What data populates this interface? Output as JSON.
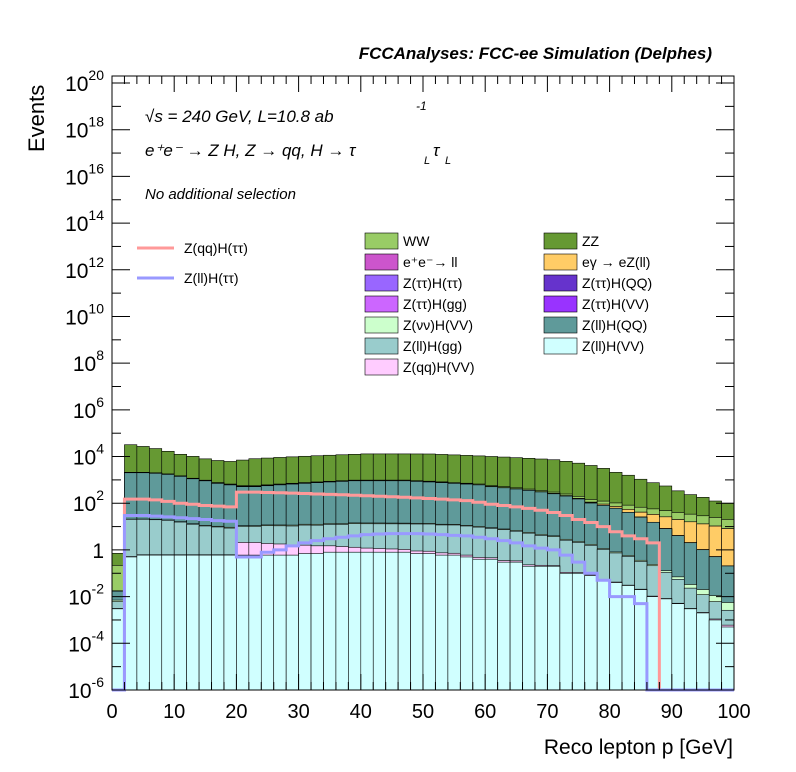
{
  "chart_data": {
    "type": "bar",
    "title": "FCCAnalyses: FCC-ee Simulation (Delphes)",
    "xlabel": "Reco lepton p [GeV]",
    "ylabel": "Events",
    "xlim": [
      0,
      100
    ],
    "ylim": [
      1e-06,
      2e+20
    ],
    "y_scale": "log",
    "x_ticks": [
      "0",
      "10",
      "20",
      "30",
      "40",
      "50",
      "60",
      "70",
      "80",
      "90",
      "100"
    ],
    "y_ticks": [
      {
        "base": "10",
        "exp": "-6",
        "value": 1e-06
      },
      {
        "base": "10",
        "exp": "-4",
        "value": 0.0001
      },
      {
        "base": "10",
        "exp": "-2",
        "value": 0.01
      },
      {
        "base": "1",
        "exp": "",
        "value": 1
      },
      {
        "base": "10",
        "exp": "2",
        "value": 100.0
      },
      {
        "base": "10",
        "exp": "4",
        "value": 10000.0
      },
      {
        "base": "10",
        "exp": "6",
        "value": 1000000.0
      },
      {
        "base": "10",
        "exp": "8",
        "value": 100000000.0
      },
      {
        "base": "10",
        "exp": "10",
        "value": 10000000000.0
      },
      {
        "base": "10",
        "exp": "12",
        "value": 1000000000000.0
      },
      {
        "base": "10",
        "exp": "14",
        "value": 100000000000000.0
      },
      {
        "base": "10",
        "exp": "16",
        "value": 1e+16
      },
      {
        "base": "10",
        "exp": "18",
        "value": 1e+18
      },
      {
        "base": "10",
        "exp": "20",
        "value": 1e+20
      }
    ],
    "annotations": {
      "energy": "√s = 240 GeV, L=10.8 ab",
      "energy_sup": "-1",
      "process": "e⁺e⁻ → Z H, Z → qq, H → τ",
      "process_sub": "L",
      "process_tau2": "τ",
      "selection": "No additional selection"
    },
    "bin_edges": [
      0,
      2,
      4,
      6,
      8,
      10,
      12,
      14,
      16,
      18,
      20,
      22,
      24,
      26,
      28,
      30,
      32,
      34,
      36,
      38,
      40,
      42,
      44,
      46,
      48,
      50,
      52,
      54,
      56,
      58,
      60,
      62,
      64,
      66,
      68,
      70,
      72,
      74,
      76,
      78,
      80,
      82,
      84,
      86,
      88,
      90,
      92,
      94,
      96,
      98,
      100
    ],
    "stacked_series": [
      {
        "name": "Z(ll)H(VV)",
        "color": "#d0ffff",
        "values": [
          0.003,
          0.5,
          0.6,
          0.6,
          0.6,
          0.6,
          0.6,
          0.6,
          0.6,
          0.6,
          0.6,
          0.6,
          0.6,
          0.6,
          0.6,
          0.7,
          0.7,
          0.8,
          0.8,
          0.8,
          0.8,
          0.8,
          0.8,
          0.8,
          0.7,
          0.7,
          0.6,
          0.6,
          0.5,
          0.4,
          0.4,
          0.3,
          0.3,
          0.2,
          0.2,
          0.2,
          0.1,
          0.1,
          0.08,
          0.05,
          0.04,
          0.03,
          0.02,
          0.01,
          0.008,
          0.005,
          0.003,
          0.002,
          0.001,
          0.0005
        ]
      },
      {
        "name": "Z(qq)H(VV)",
        "color": "#ffccff",
        "values": [
          0.0001,
          0.02,
          0.02,
          0.02,
          0.02,
          0.02,
          0.02,
          0.02,
          0.02,
          0.02,
          1.5,
          1.5,
          1.3,
          1.2,
          1.0,
          0.9,
          0.8,
          0.7,
          0.6,
          0.5,
          0.4,
          0.35,
          0.3,
          0.25,
          0.2,
          0.18,
          0.15,
          0.12,
          0.1,
          0.08,
          0.06,
          0.05,
          0.04,
          0.03,
          0.02,
          0.015,
          0.01,
          0.008,
          0.005,
          0.003,
          0.002,
          0.001,
          0.0008,
          0.0005,
          0.0003,
          0.0002,
          0.0001,
          0.0001,
          0.0001,
          0.0001
        ]
      },
      {
        "name": "Z(ll)H(gg)",
        "color": "#99cccc",
        "values": [
          0.003,
          20,
          20,
          19,
          18,
          15,
          12,
          10,
          9,
          8,
          8,
          8,
          9,
          9,
          9,
          10,
          10,
          11,
          11,
          12,
          12,
          12,
          12,
          12,
          12,
          12,
          11,
          11,
          10,
          9,
          8,
          7,
          6,
          5,
          4,
          3.5,
          2.5,
          2,
          1.5,
          1,
          0.7,
          0.5,
          0.3,
          0.2,
          0.1,
          0.05,
          0.02,
          0.01,
          0.005,
          0.002
        ]
      },
      {
        "name": "Z(νν)H(VV)",
        "color": "#ccffcc",
        "values": [
          0.001,
          0.4,
          0.45,
          0.5,
          0.5,
          0.55,
          0.6,
          0.65,
          0.7,
          0.75,
          0.8,
          0.85,
          0.9,
          0.95,
          1.0,
          1.0,
          1.05,
          1.05,
          1.1,
          1.1,
          1.1,
          1.1,
          1.05,
          1.0,
          0.95,
          0.9,
          0.85,
          0.8,
          0.75,
          0.7,
          0.6,
          0.55,
          0.5,
          0.45,
          0.4,
          0.3,
          0.25,
          0.2,
          0.15,
          0.1,
          0.08,
          0.05,
          0.04,
          0.03,
          0.02,
          0.015,
          0.01,
          0.008,
          0.005,
          0.003
        ]
      },
      {
        "name": "Z(ll)H(QQ)",
        "color": "#5f9a9a",
        "values": [
          0.01,
          2000,
          2000,
          1900,
          1700,
          1400,
          1100,
          900,
          700,
          600,
          500,
          500,
          550,
          600,
          650,
          700,
          750,
          800,
          850,
          900,
          900,
          900,
          900,
          900,
          850,
          800,
          750,
          700,
          650,
          600,
          500,
          450,
          400,
          350,
          300,
          250,
          200,
          150,
          100,
          80,
          60,
          40,
          25,
          15,
          8,
          4,
          2,
          1,
          0.5,
          0.2
        ]
      },
      {
        "name": "Z(ττ)H(VV)",
        "color": "#9933ff",
        "values": [
          0.0001,
          1.5,
          1.5,
          1.4,
          1.3,
          1.2,
          1.1,
          1.0,
          0.95,
          0.9,
          0.85,
          0.8,
          0.75,
          0.7,
          0.65,
          0.6,
          0.55,
          0.5,
          0.45,
          0.4,
          0.35,
          0.3,
          0.28,
          0.25,
          0.22,
          0.2,
          0.17,
          0.15,
          0.12,
          0.1,
          0.08,
          0.06,
          0.05,
          0.04,
          0.03,
          0.02,
          0.015,
          0.01,
          0.008,
          0.005,
          0.003,
          0.002,
          0.001,
          0.0008,
          0.0005,
          0.0003,
          0.0002,
          0.0001,
          0.0001,
          0.0001
        ]
      },
      {
        "name": "Z(ττ)H(gg)",
        "color": "#cc66ff",
        "values": [
          5e-05,
          0.6,
          0.6,
          0.55,
          0.5,
          0.45,
          0.4,
          0.38,
          0.35,
          0.32,
          0.3,
          0.28,
          0.25,
          0.23,
          0.2,
          0.18,
          0.16,
          0.14,
          0.12,
          0.1,
          0.09,
          0.08,
          0.07,
          0.06,
          0.05,
          0.04,
          0.035,
          0.03,
          0.025,
          0.02,
          0.015,
          0.012,
          0.01,
          0.008,
          0.006,
          0.004,
          0.003,
          0.002,
          0.0015,
          0.001,
          0.0008,
          0.0005,
          0.0003,
          0.0002,
          0.0001,
          0.0001,
          0.0001,
          0.0001,
          0.0001,
          0.0001
        ]
      },
      {
        "name": "Z(ττ)H(QQ)",
        "color": "#6633cc",
        "values": [
          0.0005,
          30,
          30,
          28,
          26,
          24,
          22,
          20,
          19,
          18,
          17,
          16,
          15,
          14,
          13,
          12,
          11,
          10,
          9,
          8,
          7,
          6.5,
          6,
          5.5,
          5,
          4.5,
          4,
          3.5,
          3,
          2.5,
          2,
          1.7,
          1.4,
          1.1,
          0.9,
          0.7,
          0.5,
          0.4,
          0.3,
          0.2,
          0.15,
          0.1,
          0.06,
          0.04,
          0.02,
          0.01,
          0.005,
          0.003,
          0.002,
          0.001
        ]
      },
      {
        "name": "Z(ττ)H(ττ)",
        "color": "#9966ff",
        "values": [
          1e-05,
          0.012,
          0.012,
          0.012,
          0.011,
          0.011,
          0.011,
          0.011,
          0.01,
          0.01,
          0.01,
          0.01,
          0.009,
          0.009,
          0.009,
          0.008,
          0.008,
          0.008,
          0.007,
          0.007,
          0.007,
          0.006,
          0.006,
          0.006,
          0.005,
          0.005,
          0.004,
          0.004,
          0.004,
          0.003,
          0.003,
          0.002,
          0.002,
          0.002,
          0.001,
          0.001,
          0.001,
          0.0008,
          0.0005,
          0.0003,
          0.0002,
          0.0001,
          5e-05,
          2e-05,
          1e-05,
          5e-06,
          2e-06,
          1e-06,
          1e-06,
          1e-06
        ]
      },
      {
        "name": "eγ → eZ(ll)",
        "color": "#ffcc66",
        "values": [
          1e-05,
          0.002,
          0.002,
          0.002,
          0.002,
          0.002,
          0.002,
          0.002,
          0.002,
          0.002,
          0.003,
          0.004,
          0.005,
          0.006,
          0.008,
          0.01,
          0.015,
          0.02,
          0.03,
          0.04,
          0.06,
          0.08,
          0.1,
          0.15,
          0.2,
          0.3,
          0.4,
          0.6,
          0.8,
          1.2,
          1.6,
          2.2,
          3,
          4,
          5,
          6,
          7,
          8,
          9,
          10,
          12,
          14,
          16,
          18,
          18,
          16,
          14,
          12,
          10,
          8
        ]
      },
      {
        "name": "e⁺e⁻→ ll",
        "color": "#cc55cc",
        "values": [
          1e-06,
          0.001,
          0.001,
          0.001,
          0.001,
          0.001,
          0.001,
          0.001,
          0.001,
          0.001,
          0.001,
          0.001,
          0.001,
          0.001,
          0.001,
          0.001,
          0.001,
          0.001,
          0.001,
          0.001,
          0.001,
          0.001,
          0.001,
          0.001,
          0.001,
          0.001,
          0.001,
          0.001,
          0.001,
          0.001,
          0.001,
          0.001,
          0.001,
          0.001,
          0.001,
          0.001,
          0.001,
          0.001,
          0.001,
          0.001,
          0.001,
          0.001,
          0.001,
          0.001,
          0.001,
          0.001,
          0.001,
          0.001,
          0.001,
          0.001
        ]
      },
      {
        "name": "WW",
        "color": "#99cc66",
        "values": [
          0.2,
          60,
          60,
          55,
          50,
          45,
          40,
          38,
          36,
          35,
          35,
          35,
          36,
          38,
          40,
          42,
          45,
          48,
          50,
          52,
          55,
          57,
          58,
          60,
          60,
          60,
          58,
          56,
          54,
          52,
          50,
          48,
          46,
          44,
          42,
          40,
          38,
          36,
          34,
          32,
          30,
          28,
          26,
          24,
          22,
          20,
          18,
          16,
          14,
          12
        ]
      },
      {
        "name": "ZZ",
        "color": "#669933",
        "values": [
          0.5,
          30000,
          25000,
          20000,
          15000,
          11000,
          9000,
          7000,
          6000,
          5500,
          6500,
          7500,
          8000,
          8500,
          9000,
          9500,
          10000,
          10500,
          11000,
          11500,
          12000,
          12000,
          12000,
          12000,
          12000,
          12000,
          11500,
          11000,
          10500,
          10000,
          9500,
          9000,
          8500,
          8000,
          7500,
          7000,
          6000,
          5000,
          4000,
          3000,
          2000,
          1500,
          1000,
          700,
          500,
          300,
          200,
          150,
          100,
          80
        ]
      }
    ],
    "line_series": [
      {
        "name": "Z(qq)H(ττ)",
        "color": "#ff9999",
        "values": [
          1e-06,
          150,
          150,
          140,
          120,
          100,
          90,
          80,
          75,
          70,
          300,
          300,
          290,
          280,
          270,
          260,
          250,
          240,
          230,
          220,
          210,
          200,
          190,
          180,
          170,
          160,
          150,
          140,
          130,
          110,
          90,
          80,
          70,
          60,
          50,
          40,
          30,
          20,
          15,
          10,
          6,
          4,
          3,
          2,
          1e-06,
          1e-06,
          1e-06,
          1e-06,
          1e-06,
          1e-06
        ]
      },
      {
        "name": "Z(ll)H(ττ)",
        "color": "#9999ff",
        "values": [
          1e-06,
          30,
          30,
          28,
          26,
          24,
          22,
          20,
          18,
          17,
          0.5,
          0.5,
          0.8,
          1.0,
          1.5,
          2,
          2.5,
          3,
          3.5,
          4,
          4.5,
          4.8,
          5,
          5,
          5,
          4.8,
          4.5,
          4.2,
          4,
          3.5,
          3,
          2.5,
          2,
          1.5,
          1.2,
          1,
          0.6,
          0.3,
          0.1,
          0.05,
          0.01,
          0.01,
          0.005,
          1e-06,
          1e-06,
          1e-06,
          1e-06,
          1e-06,
          1e-06,
          1e-06
        ]
      }
    ],
    "legend_columns": [
      [
        "WW",
        "e⁺e⁻→ ll",
        "Z(ττ)H(ττ)",
        "Z(ττ)H(gg)",
        "Z(νν)H(VV)",
        "Z(ll)H(gg)",
        "Z(qq)H(VV)"
      ],
      [
        "ZZ",
        "eγ → eZ(ll)",
        "Z(ττ)H(QQ)",
        "Z(ττ)H(VV)",
        "Z(ll)H(QQ)",
        "Z(ll)H(VV)"
      ]
    ],
    "legend_placement": "upper-right",
    "line_legend_placement": "upper-left",
    "grid": false
  }
}
